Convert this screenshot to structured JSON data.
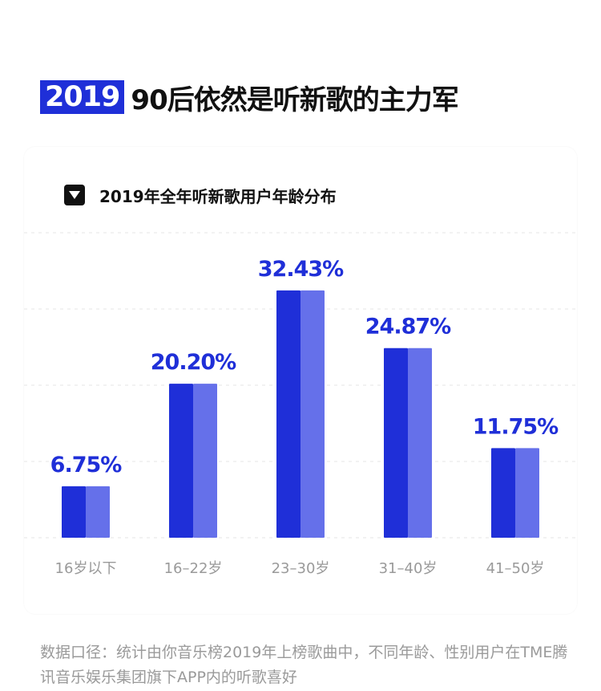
{
  "header": {
    "year_badge": "2019",
    "headline": "90后依然是听新歌的主力军"
  },
  "subtitle": {
    "icon": "triangle-down-icon",
    "text": "2019年全年听新歌用户年龄分布"
  },
  "colors": {
    "accent": "#1f2fd8",
    "bar_light": "#6570ea",
    "grid": "#e6e6e6",
    "tick_text": "#9a9a9a"
  },
  "chart_data": {
    "type": "bar",
    "categories": [
      "16岁以下",
      "16–22岁",
      "23–30岁",
      "31–40岁",
      "41–50岁"
    ],
    "values": [
      6.75,
      20.2,
      32.43,
      24.87,
      11.75
    ],
    "data_labels": [
      "6.75%",
      "20.20%",
      "32.43%",
      "24.87%",
      "11.75%"
    ],
    "title": "2019年全年听新歌用户年龄分布",
    "xlabel": "",
    "ylabel": "",
    "unit": "%",
    "ylim": [
      0,
      40
    ],
    "grid": true,
    "legend": "none"
  },
  "footnote": "数据口径：统计由你音乐榜2019年上榜歌曲中，不同年龄、性别用户在TME腾讯音乐娱乐集团旗下APP内的听歌喜好"
}
